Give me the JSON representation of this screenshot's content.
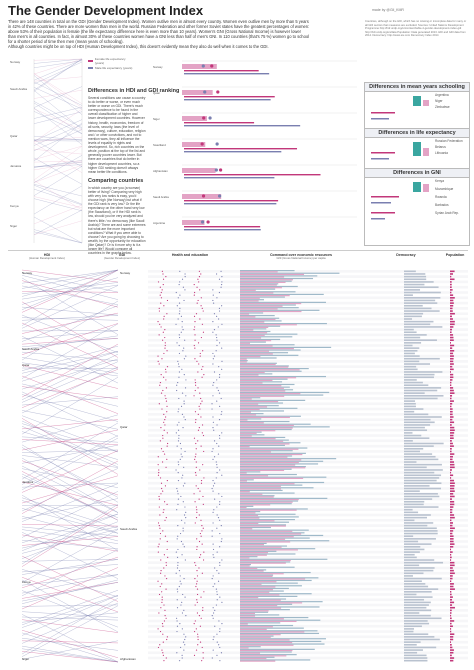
{
  "header": {
    "title": "The Gender Development Index",
    "credit": "made by @Gil_KMR",
    "intro": "There are 148 countries in total on the GDI (Gender Development Index). Women outlive men in almost every country. Women even outlive men by more than 5 years in 42% of these countries. There are more women than men in the world. Russian Federation and other former Soviet states have the greatest percentages of women: above 53% of their population is female (the life expectancy difference here is even more than 10 years). Women's GNI (Gross National Income) is however lower than men's in all countries. In fact, in almost 30% of these countries women have a GNI less than half of men's GNI. In 110 countries (that's 75 %) women go to school for a shorter period of time then men (mean years of schooling).",
    "intro2": "Although countries might be on top of HDI (Human Development Index), this doesn't evidently mean they also do well when it comes to the GDI.",
    "sources": "Countries, although on the HDI, which has no missing or incomplete data for many or all GDI sectors that measures are excluded. Sources: United Nations Development Programme http://hdr.undp.org/en/content/table-4-gender-development-index-gdi http://hdr.undp.org/en/data Population: Data generated 2013. HDI and GDI data from 2014. Democracy: http://www.eiu.com Democracy Index 2014"
  },
  "text_block": {
    "h1": "Differences in HDI and GDI ranking",
    "p1": "Several conditions can cause a country to do better or worse, or even much better or worse on GDI. There's much correspondence to be found in the overall classification of higher and lower development countries. However history, health, economics, freedom of all sorts, security, laws (the level of democracy), culture, education, religion and / or other convictions, and not to mention wars, they all influence the levels of equality in rights and development. So, rich countries on the whole, position at the top of the list and generally poorer countries lower. But there are countries that do better in higher development countries, so a higher GDI ranking doesn't always mean better life conditions.",
    "h2": "Comparing countries",
    "p2": "In which country are you (a woman) better of living? Comparing very high with very low ranks is easy, you'd choose high (the Norway) but what if the GDI rank is very low? Or the life expectancy on the other hand very low (the Swaziland), or if the HDI rank is low, should you be very analyzed and there's little / no democracy (like Saudi Arabia)? There are and some extremes but what are the more important conditions? What if you were able to choose? Are you going by choosing to wealth, by the opportunity for education (like Qatar)? Or is it more why is it a longer life? Would compare all countries in the graphs below."
  },
  "mini_legend": {
    "pointer_label": "female",
    "items": [
      "Female life expectancy (years)",
      "Male life expectancy (years)"
    ]
  },
  "side_panels": [
    {
      "title": "Differences in mean years schooling",
      "items": [
        "Argentina",
        "Niger",
        "Zimbabwe"
      ]
    },
    {
      "title": "Differences in life expectancy",
      "items": [
        "Russian Federation",
        "Belarus",
        "Lithuania"
      ]
    },
    {
      "title": "Differences in GNI",
      "items": [
        "Kenya",
        "Mozambique",
        "Rwanda",
        "Barbados",
        "Syrian Arab Rep."
      ]
    }
  ],
  "columns": [
    {
      "title": "HDI",
      "sub": "(Human Development Index)"
    },
    {
      "title": "GDI",
      "sub": "(Gender Development Index)"
    },
    {
      "title": "Health and education",
      "sub": ""
    },
    {
      "title": "Command over economic resources",
      "sub": "GNI (Gross National Income) per capita"
    },
    {
      "title": "Democracy",
      "sub": ""
    },
    {
      "title": "Population",
      "sub": ""
    }
  ],
  "country_labels": {
    "hdi": [
      "Norway",
      "Saudi Arabia",
      "Qatar",
      "Jamaica",
      "Kenya",
      "Niger"
    ],
    "gdi": [
      "Norway",
      "Qatar",
      "Saudi Arabia",
      "Afghanistan"
    ]
  },
  "mini_panels": [
    "Norway",
    "Qatar",
    "Niger",
    "Swaziland",
    "Afghanistan",
    "Saudi Arabia",
    "Argentina"
  ],
  "colors": {
    "female": "#c2377a",
    "male": "#7a7fb0",
    "female_light": "#e3a3c5",
    "male_light": "#9fb9c9",
    "teal": "#3aa6a0",
    "grid": "#d0d0d0"
  },
  "chart_data": {
    "type": "table",
    "hdi_rank_range": [
      1,
      188
    ],
    "gdi_rank_range": [
      1,
      148
    ],
    "rows": 148
  }
}
